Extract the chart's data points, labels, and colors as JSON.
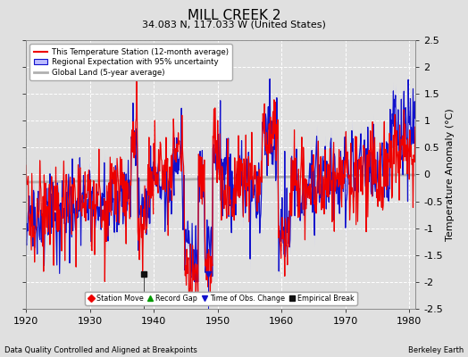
{
  "title": "MILL CREEK 2",
  "subtitle": "34.083 N, 117.033 W (United States)",
  "ylabel": "Temperature Anomaly (°C)",
  "xlabel_left": "Data Quality Controlled and Aligned at Breakpoints",
  "xlabel_right": "Berkeley Earth",
  "xlim": [
    1920,
    1981
  ],
  "ylim": [
    -2.5,
    2.5
  ],
  "yticks": [
    -2.5,
    -2,
    -1.5,
    -1,
    -0.5,
    0,
    0.5,
    1,
    1.5,
    2,
    2.5
  ],
  "xticks": [
    1920,
    1930,
    1940,
    1950,
    1960,
    1970,
    1980
  ],
  "background_color": "#e0e0e0",
  "plot_bg_color": "#e0e0e0",
  "grid_color": "#ffffff",
  "station_color": "#ee0000",
  "regional_color": "#1111cc",
  "regional_fill_color": "#bbbbff",
  "global_color": "#b0b0b0",
  "empirical_break_x": 1938.5,
  "time_obs_change_x": 1948.5,
  "title_fontsize": 11,
  "subtitle_fontsize": 8,
  "tick_fontsize": 8,
  "ylabel_fontsize": 8
}
